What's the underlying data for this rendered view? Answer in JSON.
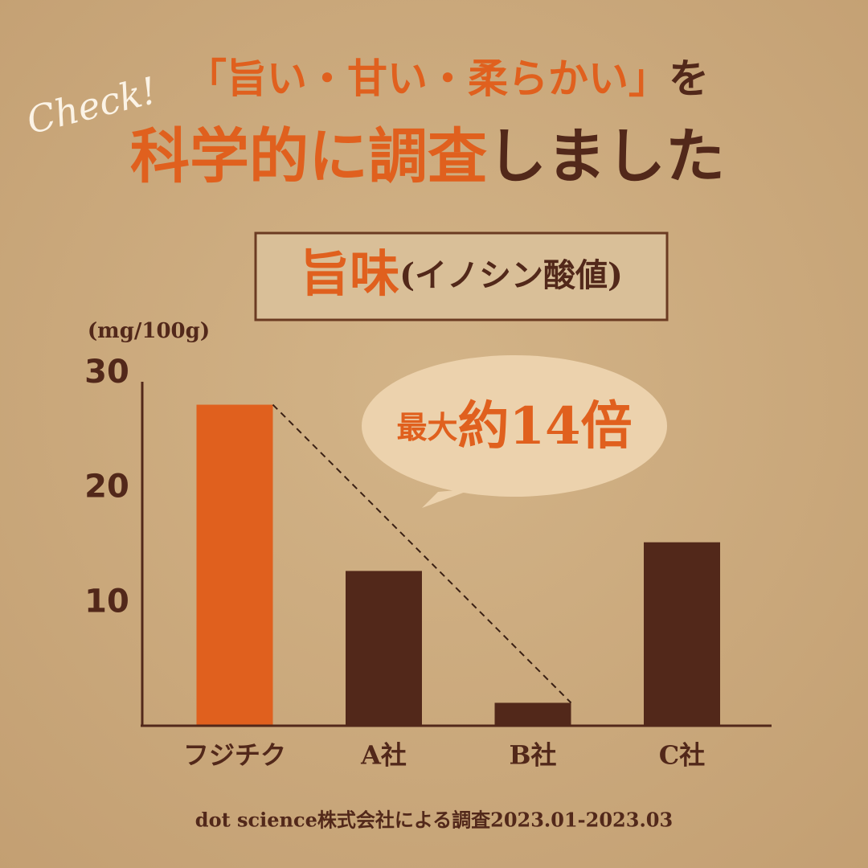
{
  "header": {
    "check": "Check!",
    "title_line1": "「旨い・甘い・柔らかい」",
    "title_line1_suffix": "を",
    "title_line2_highlight": "科学的に調査",
    "title_line2_suffix": "しました"
  },
  "chart_data": {
    "type": "bar",
    "title": "旨味",
    "subtitle": "(イノシン酸値)",
    "y_label": "(mg/100g)",
    "categories": [
      "フジチク",
      "A社",
      "B社",
      "C社"
    ],
    "values": [
      28,
      13.5,
      2,
      16
    ],
    "colors": [
      "#e0601e",
      "#52281a",
      "#52281a",
      "#52281a"
    ],
    "ylim": [
      0,
      30
    ],
    "yticks": [
      10,
      20,
      30
    ],
    "annotation": {
      "prefix": "最大",
      "text": "約14倍"
    },
    "source": "dot science株式会社による調査2023.01-2023.03"
  }
}
